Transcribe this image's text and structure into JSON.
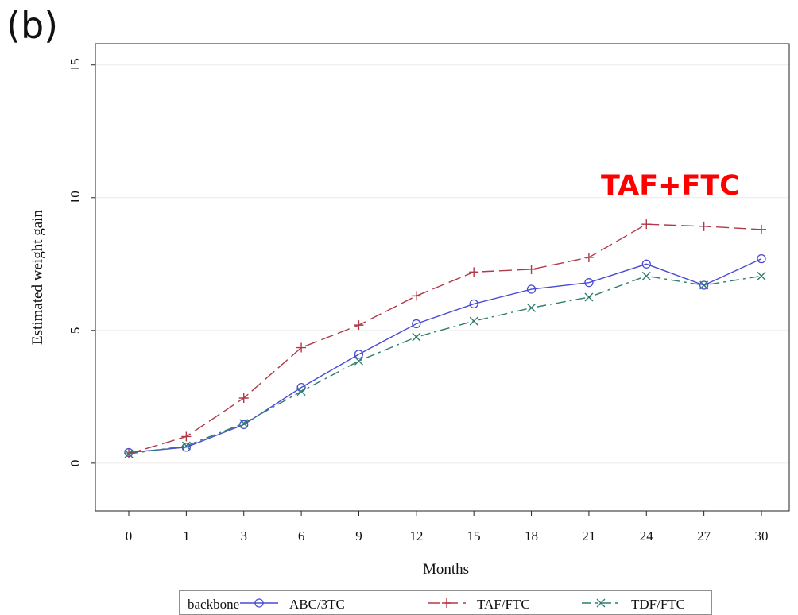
{
  "panel_label": "(b)",
  "annotation": "TAF+FTC",
  "chart_data": {
    "type": "line",
    "xlabel": "Months",
    "ylabel": "Estimated weight gain",
    "categories": [
      "0",
      "1",
      "3",
      "6",
      "9",
      "12",
      "15",
      "18",
      "21",
      "24",
      "27",
      "30"
    ],
    "ylim": [
      -1.8,
      15.8
    ],
    "yticks": [
      0,
      5,
      10,
      15
    ],
    "grid": "horizontal",
    "legend": {
      "placement": "bottom",
      "title": "backbone"
    },
    "series": [
      {
        "name": "ABC/3TC",
        "color": "#4a4ad6",
        "marker": "circle",
        "dash": "solid",
        "values": [
          0.4,
          0.6,
          1.45,
          2.85,
          4.1,
          5.25,
          6.0,
          6.55,
          6.8,
          7.5,
          6.7,
          7.7
        ]
      },
      {
        "name": "TAF/FTC",
        "color": "#b03a48",
        "marker": "plus",
        "dash": "long-dash",
        "values": [
          0.35,
          1.0,
          2.45,
          4.35,
          5.2,
          6.3,
          7.2,
          7.3,
          7.75,
          9.0,
          8.92,
          8.8
        ]
      },
      {
        "name": "TDF/FTC",
        "color": "#2e7d6f",
        "marker": "x",
        "dash": "dash-dot",
        "values": [
          0.35,
          0.65,
          1.5,
          2.7,
          3.85,
          4.75,
          5.35,
          5.85,
          6.25,
          7.05,
          6.7,
          7.05
        ]
      }
    ]
  }
}
